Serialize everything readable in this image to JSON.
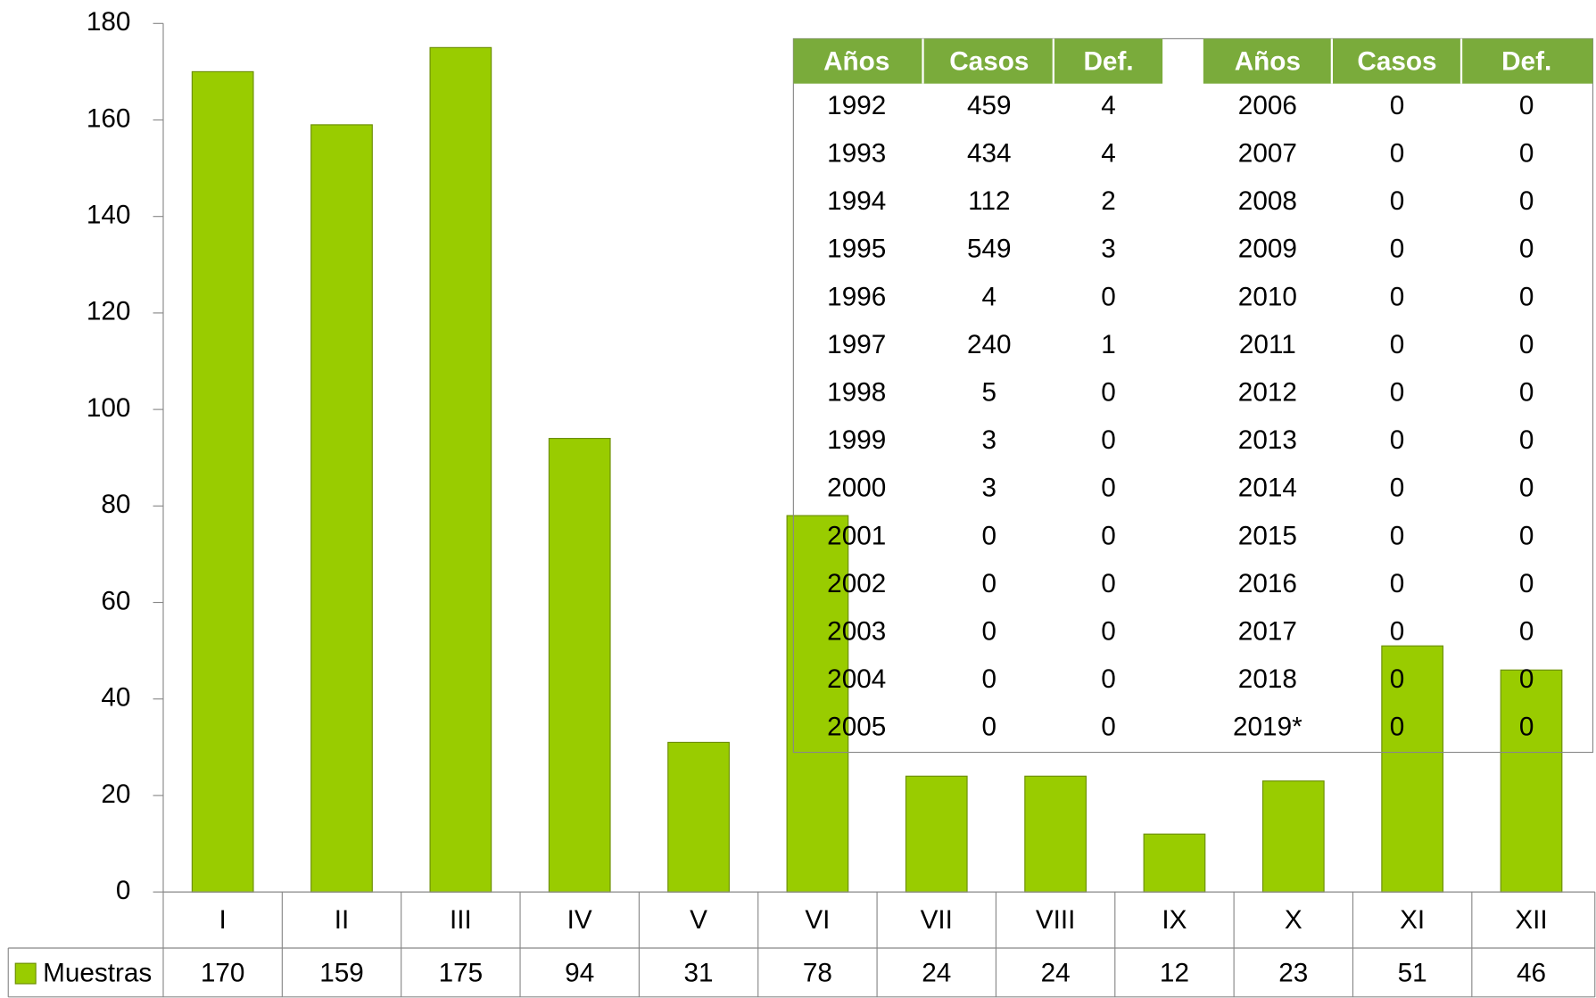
{
  "chart_data": {
    "type": "bar",
    "categories": [
      "I",
      "II",
      "III",
      "IV",
      "V",
      "VI",
      "VII",
      "VIII",
      "IX",
      "X",
      "XI",
      "XII"
    ],
    "series": [
      {
        "name": "Muestras",
        "color": "#99cc00",
        "values": [
          170,
          159,
          175,
          94,
          31,
          78,
          24,
          24,
          12,
          23,
          51,
          46
        ]
      }
    ],
    "ylim": [
      0,
      180
    ],
    "yticks": [
      0,
      20,
      40,
      60,
      80,
      100,
      120,
      140,
      160,
      180
    ]
  },
  "table": {
    "header": [
      "Años",
      "Casos",
      "Def.",
      "Años",
      "Casos",
      "Def."
    ],
    "rows": [
      [
        "1992",
        "459",
        "4",
        "2006",
        "0",
        "0"
      ],
      [
        "1993",
        "434",
        "4",
        "2007",
        "0",
        "0"
      ],
      [
        "1994",
        "112",
        "2",
        "2008",
        "0",
        "0"
      ],
      [
        "1995",
        "549",
        "3",
        "2009",
        "0",
        "0"
      ],
      [
        "1996",
        "4",
        "0",
        "2010",
        "0",
        "0"
      ],
      [
        "1997",
        "240",
        "1",
        "2011",
        "0",
        "0"
      ],
      [
        "1998",
        "5",
        "0",
        "2012",
        "0",
        "0"
      ],
      [
        "1999",
        "3",
        "0",
        "2013",
        "0",
        "0"
      ],
      [
        "2000",
        "3",
        "0",
        "2014",
        "0",
        "0"
      ],
      [
        "2001",
        "0",
        "0",
        "2015",
        "0",
        "0"
      ],
      [
        "2002",
        "0",
        "0",
        "2016",
        "0",
        "0"
      ],
      [
        "2003",
        "0",
        "0",
        "2017",
        "0",
        "0"
      ],
      [
        "2004",
        "0",
        "0",
        "2018",
        "0",
        "0"
      ],
      [
        "2005",
        "0",
        "0",
        "2019*",
        "0",
        "0"
      ]
    ]
  }
}
